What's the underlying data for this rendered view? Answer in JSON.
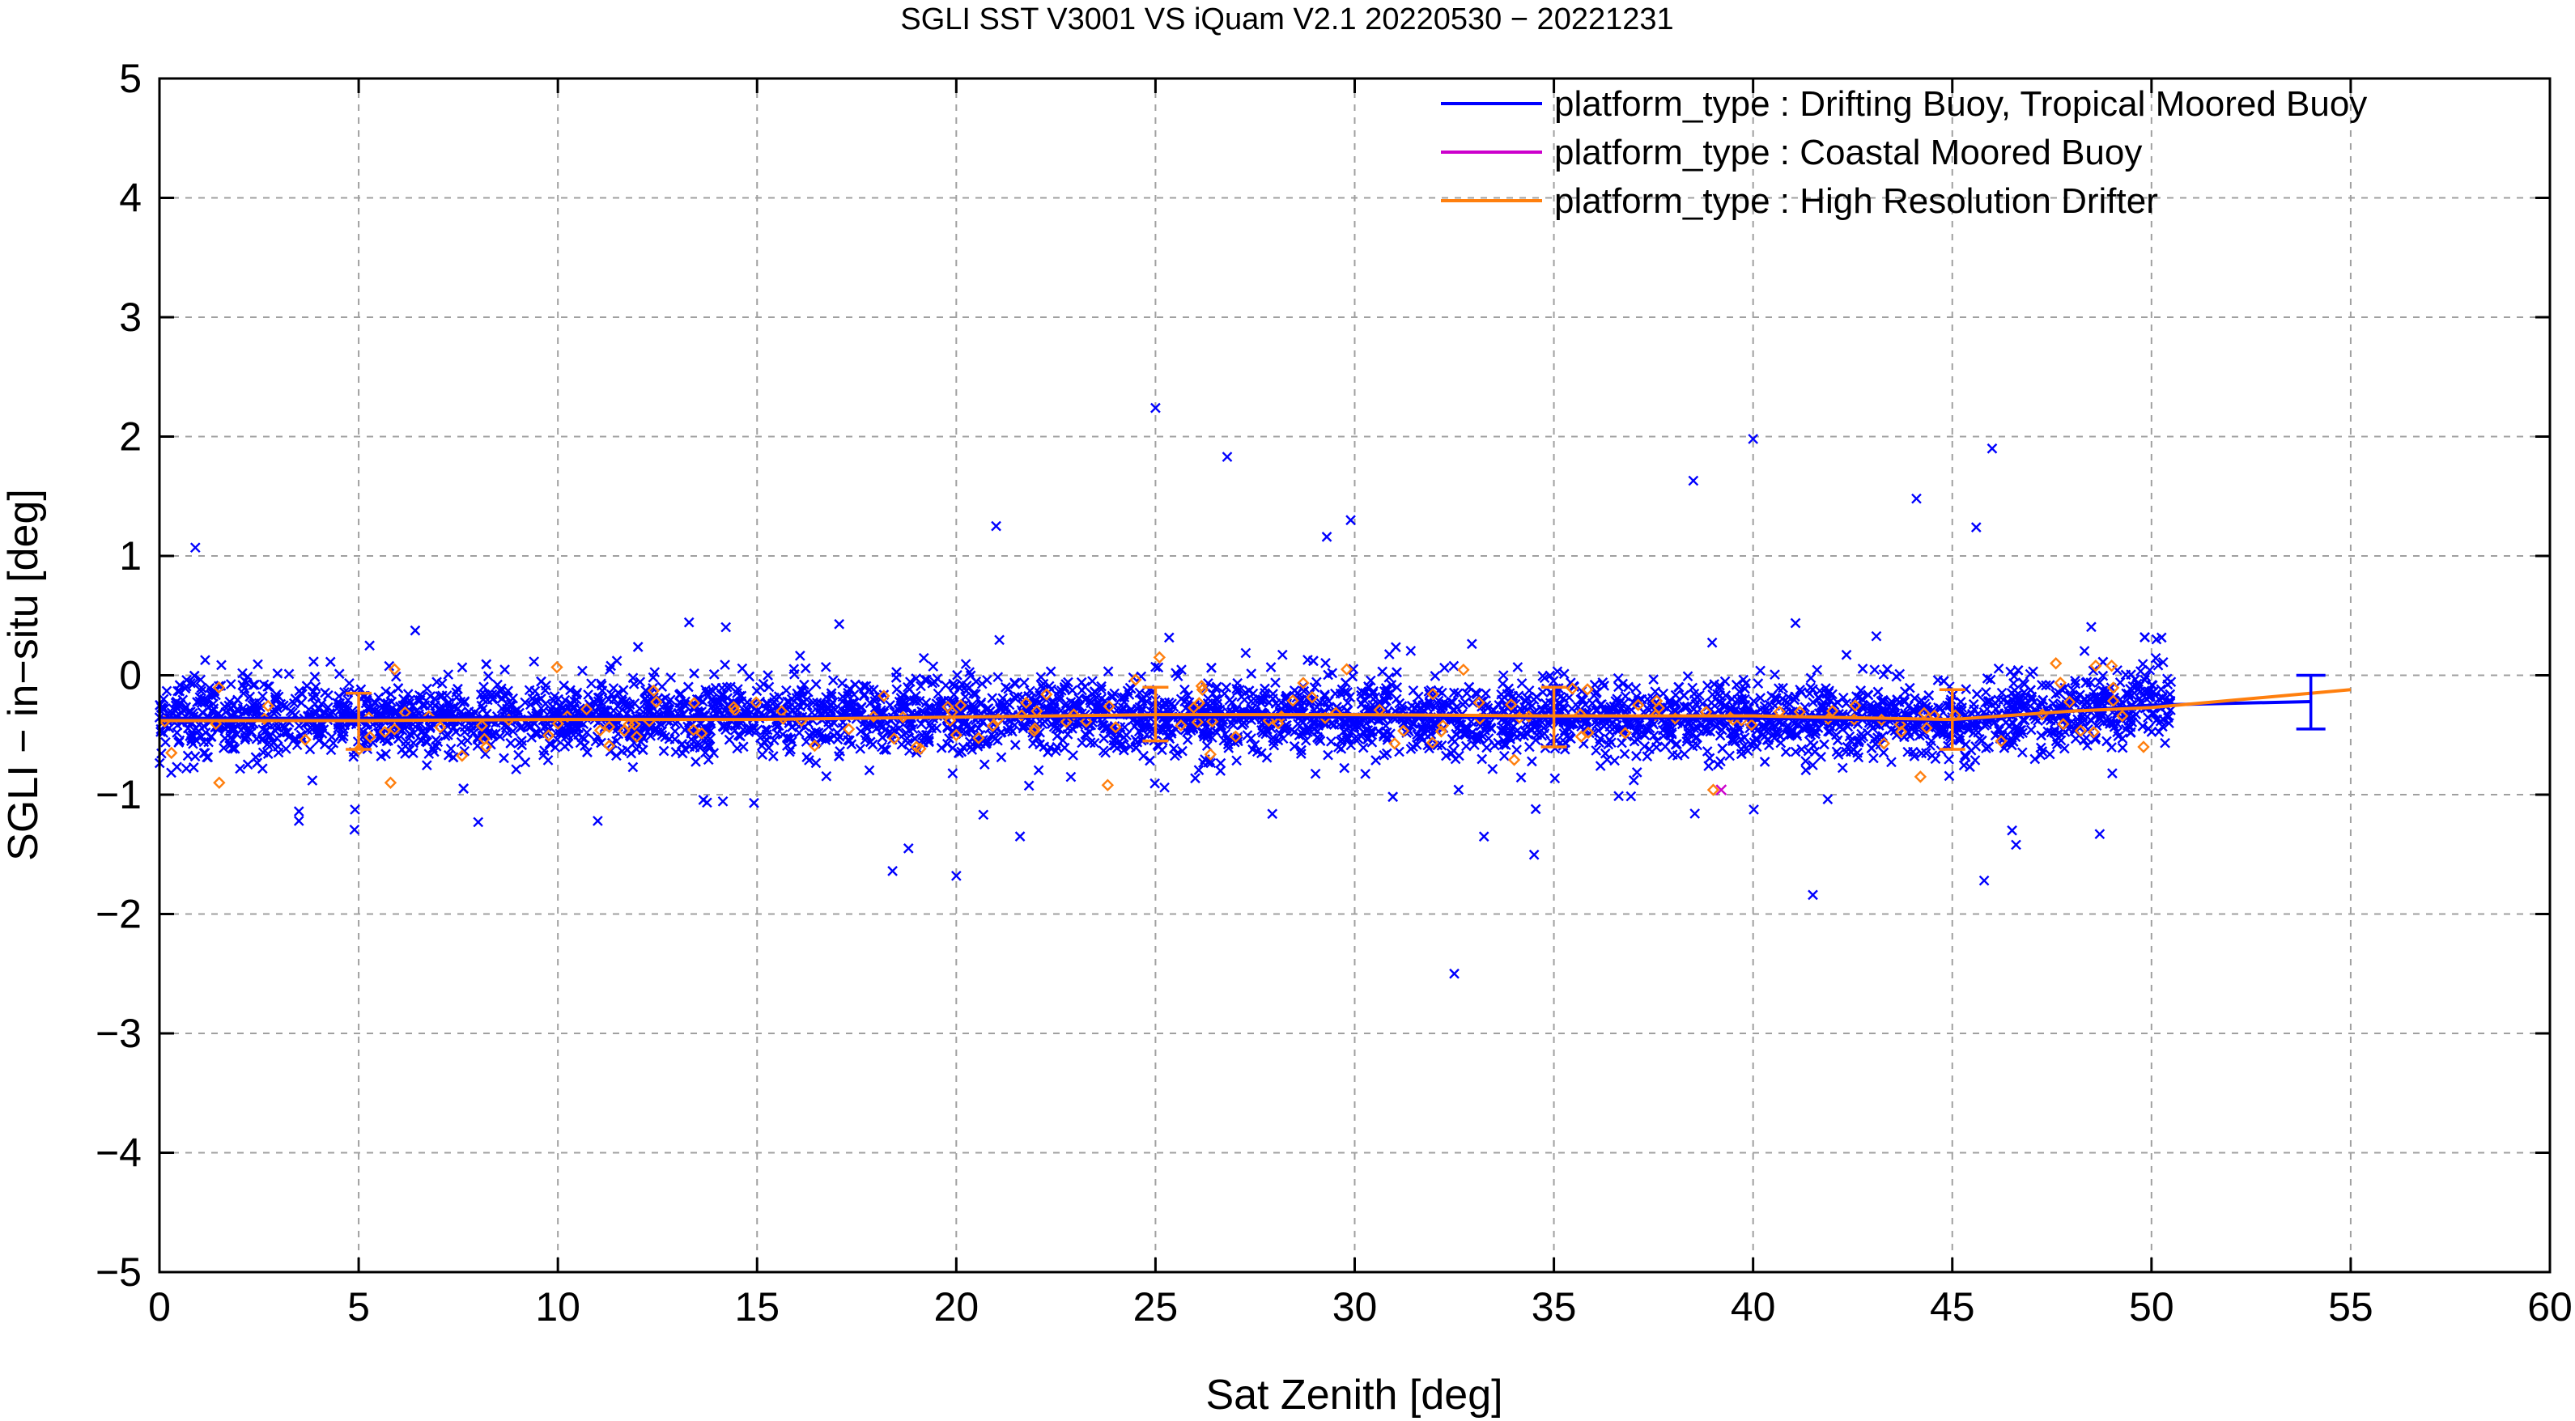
{
  "chart_data": {
    "type": "scatter",
    "title": "SGLI SST V3001 VS iQuam V2.1 20220530 − 20221231",
    "xlabel": "Sat Zenith [deg]",
    "ylabel": "SGLI − in−situ [deg]",
    "xlim": [
      0,
      60
    ],
    "ylim": [
      -5,
      5
    ],
    "x_ticks": [
      0,
      5,
      10,
      15,
      20,
      25,
      30,
      35,
      40,
      45,
      50,
      55,
      60
    ],
    "y_ticks": [
      -5,
      -4,
      -3,
      -2,
      -1,
      0,
      1,
      2,
      3,
      4,
      5
    ],
    "x_tick_labels": [
      "0",
      "5",
      "10",
      "15",
      "20",
      "25",
      "30",
      "35",
      "40",
      "45",
      "50",
      "55",
      "60"
    ],
    "y_tick_labels": [
      "−5",
      "−4",
      "−3",
      "−2",
      "−1",
      "0",
      "1",
      "2",
      "3",
      "4",
      "5"
    ],
    "grid": true,
    "legend_position": "top-right",
    "series": [
      {
        "name": "platform_type : Drifting Buoy, Tropical Moored Buoy",
        "color": "#0000ff",
        "marker": "x",
        "points_summary": {
          "x_range": [
            0,
            50.5
          ],
          "main_band": [
            -0.9,
            0.2
          ],
          "center_trend": [
            [
              0,
              -0.36
            ],
            [
              5,
              -0.36
            ],
            [
              10,
              -0.35
            ],
            [
              20,
              -0.35
            ],
            [
              30,
              -0.35
            ],
            [
              40,
              -0.36
            ],
            [
              45,
              -0.38
            ],
            [
              48,
              -0.3
            ],
            [
              50,
              -0.25
            ],
            [
              54,
              -0.22
            ]
          ]
        },
        "outliers": [
          [
            0.9,
            1.07
          ],
          [
            21.0,
            1.25
          ],
          [
            25.0,
            2.24
          ],
          [
            26.8,
            1.83
          ],
          [
            29.3,
            1.16
          ],
          [
            29.9,
            1.3
          ],
          [
            38.5,
            1.63
          ],
          [
            40.0,
            1.98
          ],
          [
            44.1,
            1.48
          ],
          [
            45.6,
            1.24
          ],
          [
            46.0,
            1.9
          ],
          [
            32.5,
            -2.5
          ],
          [
            41.5,
            -1.84
          ],
          [
            18.4,
            -1.64
          ],
          [
            20.0,
            -1.68
          ],
          [
            21.6,
            -1.35
          ],
          [
            45.8,
            -1.72
          ],
          [
            46.5,
            -1.3
          ],
          [
            46.6,
            -1.42
          ],
          [
            48.7,
            -1.33
          ],
          [
            3.5,
            -1.22
          ],
          [
            3.5,
            -1.14
          ],
          [
            8.0,
            -1.23
          ],
          [
            11.0,
            -1.22
          ],
          [
            18.8,
            -1.45
          ]
        ],
        "error_bars": [
          {
            "x": 54,
            "y": -0.22,
            "low": -0.45,
            "high": 0.0
          }
        ]
      },
      {
        "name": "platform_type : Coastal Moored Buoy",
        "color": "#cc00cc",
        "marker": "x",
        "points": [
          [
            39.2,
            -0.96
          ]
        ]
      },
      {
        "name": "platform_type : High Resolution Drifter",
        "color": "#ff7f0e",
        "marker": "diamond",
        "line": [
          [
            0,
            -0.38
          ],
          [
            5,
            -0.38
          ],
          [
            10,
            -0.37
          ],
          [
            15,
            -0.37
          ],
          [
            20,
            -0.35
          ],
          [
            25,
            -0.33
          ],
          [
            30,
            -0.33
          ],
          [
            35,
            -0.34
          ],
          [
            40,
            -0.34
          ],
          [
            45,
            -0.37
          ],
          [
            48,
            -0.3
          ],
          [
            50,
            -0.27
          ],
          [
            55,
            -0.12
          ]
        ],
        "error_bars": [
          {
            "x": 5,
            "low": -0.62,
            "high": -0.15
          },
          {
            "x": 25,
            "low": -0.55,
            "high": -0.1
          },
          {
            "x": 35,
            "low": -0.6,
            "high": -0.1
          },
          {
            "x": 45,
            "low": -0.62,
            "high": -0.12
          }
        ],
        "points": [
          [
            0.3,
            -0.65
          ],
          [
            1.5,
            -0.9
          ],
          [
            5.8,
            -0.9
          ],
          [
            5.9,
            0.05
          ],
          [
            8.2,
            -0.6
          ],
          [
            19.0,
            -0.6
          ],
          [
            23.8,
            -0.92
          ],
          [
            25.1,
            0.15
          ],
          [
            29.8,
            0.05
          ],
          [
            39.0,
            -0.96
          ],
          [
            44.2,
            -0.85
          ],
          [
            47.6,
            0.1
          ],
          [
            48.6,
            0.08
          ],
          [
            49.0,
            0.08
          ],
          [
            49.8,
            -0.6
          ]
        ]
      }
    ]
  }
}
